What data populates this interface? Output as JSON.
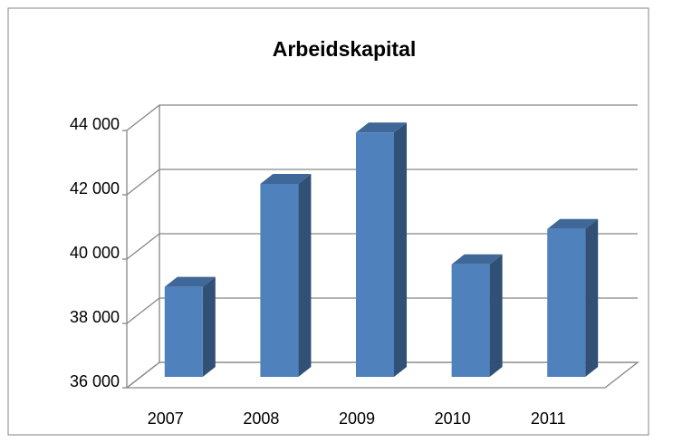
{
  "chart_data": {
    "type": "bar3d",
    "title": "Arbeidskapital",
    "categories": [
      "2007",
      "2008",
      "2009",
      "2010",
      "2011"
    ],
    "values": [
      38800,
      42000,
      43600,
      39500,
      40600
    ],
    "color": "#4f81bd",
    "ylim": [
      36000,
      44000
    ],
    "yticks": [
      {
        "value": 36000,
        "label": "36 000"
      },
      {
        "value": 38000,
        "label": "38 000"
      },
      {
        "value": 40000,
        "label": "40 000"
      },
      {
        "value": 42000,
        "label": "42 000"
      },
      {
        "value": 44000,
        "label": "44 000"
      }
    ],
    "grid": true
  }
}
